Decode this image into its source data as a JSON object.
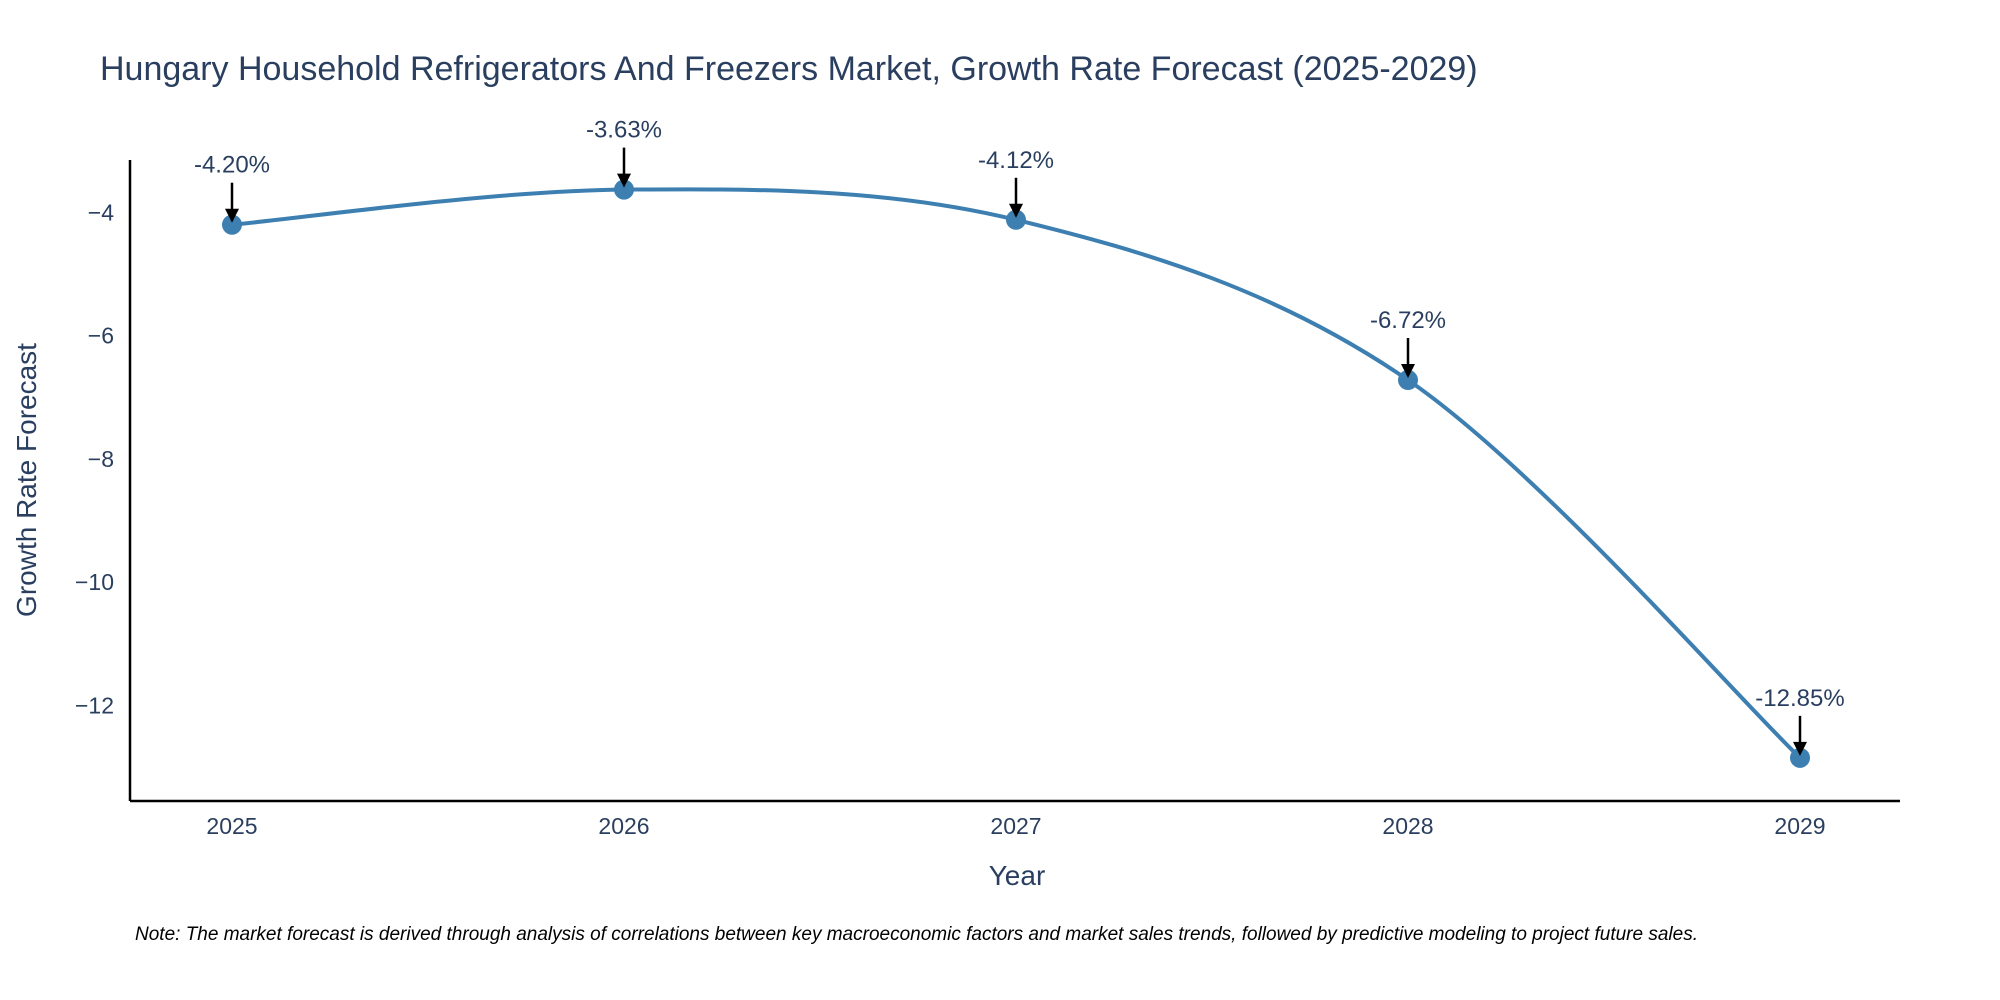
{
  "chart_data": {
    "type": "line",
    "title": "Hungary Household Refrigerators And Freezers Market, Growth Rate Forecast (2025-2029)",
    "xlabel": "Year",
    "ylabel": "Growth Rate Forecast",
    "x": [
      "2025",
      "2026",
      "2027",
      "2028",
      "2029"
    ],
    "series": [
      {
        "name": "Growth Rate Forecast",
        "values": [
          -4.2,
          -3.63,
          -4.12,
          -6.72,
          -12.85
        ],
        "labels": [
          "-4.20%",
          "-3.63%",
          "-4.12%",
          "-6.72%",
          "-12.85%"
        ],
        "color": "#3d7fb1"
      }
    ],
    "y_ticks": [
      -4,
      -6,
      -8,
      -10,
      -12
    ],
    "y_tick_labels": [
      "−4",
      "−6",
      "−8",
      "−10",
      "−12"
    ],
    "ylim": [
      -13.55,
      -3.15
    ],
    "grid": false,
    "line_shape": "spline",
    "note": "Note: The market forecast is derived through analysis of correlations between key macroeconomic factors and market sales trends, followed by predictive modeling to project future sales."
  }
}
